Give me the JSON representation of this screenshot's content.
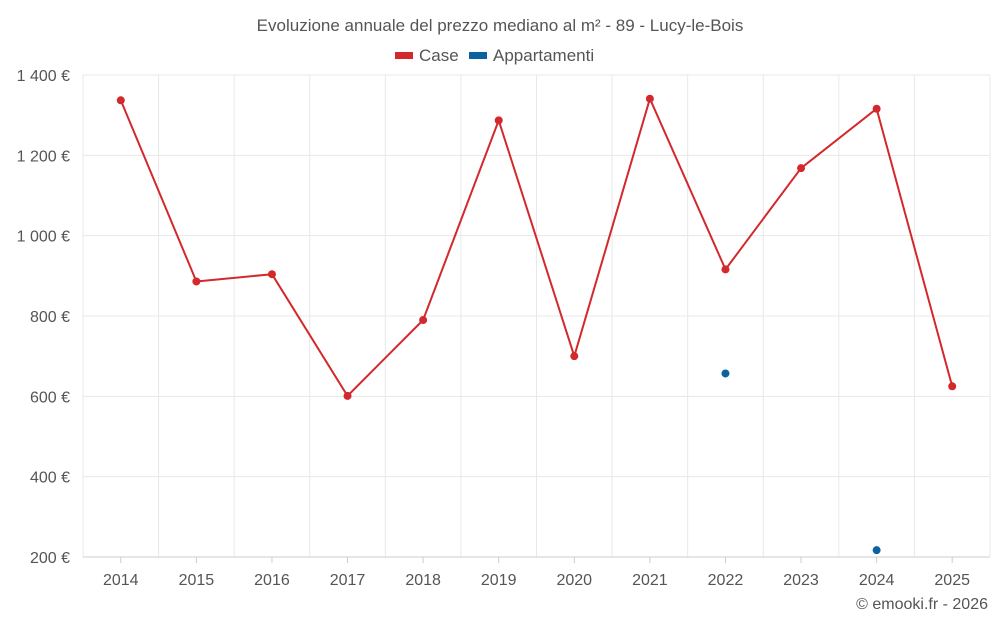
{
  "chart_data": {
    "type": "line",
    "title": "Evoluzione annuale del prezzo mediano al m² - 89 - Lucy-le-Bois",
    "categories": [
      "2014",
      "2015",
      "2016",
      "2017",
      "2018",
      "2019",
      "2020",
      "2021",
      "2022",
      "2023",
      "2024",
      "2025"
    ],
    "series": [
      {
        "name": "Case",
        "color": "#d3282c",
        "values": [
          1337,
          886,
          904,
          601,
          790,
          1287,
          700,
          1341,
          916,
          1168,
          1316,
          625
        ]
      },
      {
        "name": "Appartamenti",
        "color": "#0b629e",
        "values": [
          null,
          null,
          null,
          null,
          null,
          null,
          null,
          null,
          657,
          null,
          217,
          null
        ]
      }
    ],
    "y_ticks": [
      "1 400 €",
      "1 200 €",
      "1 000 €",
      "800 €",
      "600 €",
      "400 €",
      "200 €"
    ],
    "y_tick_values": [
      1400,
      1200,
      1000,
      800,
      600,
      400,
      200
    ],
    "ylim": [
      200,
      1400
    ],
    "xlabel": "",
    "ylabel": "",
    "legend": "top-center",
    "grid": true
  },
  "credit": "© emooki.fr - 2026"
}
